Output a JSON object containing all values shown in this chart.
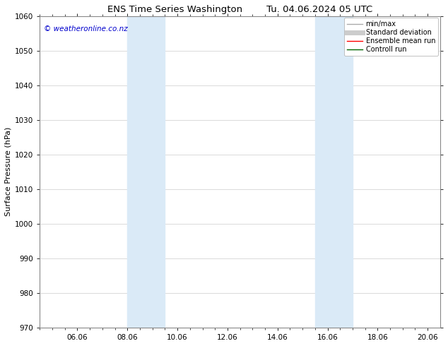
{
  "title_left": "ENS Time Series Washington",
  "title_right": "Tu. 04.06.2024 05 UTC",
  "ylabel": "Surface Pressure (hPa)",
  "ylim": [
    970,
    1060
  ],
  "yticks": [
    970,
    980,
    990,
    1000,
    1010,
    1020,
    1030,
    1040,
    1050,
    1060
  ],
  "xlim_start": 4.5,
  "xlim_end": 20.5,
  "xtick_labels": [
    "06.06",
    "08.06",
    "10.06",
    "12.06",
    "14.06",
    "16.06",
    "18.06",
    "20.06"
  ],
  "xtick_positions": [
    6.0,
    8.0,
    10.0,
    12.0,
    14.0,
    16.0,
    18.0,
    20.0
  ],
  "shaded_regions": [
    {
      "x_start": 8.0,
      "x_end": 9.5,
      "color": "#daeaf7"
    },
    {
      "x_start": 15.5,
      "x_end": 17.0,
      "color": "#daeaf7"
    }
  ],
  "watermark_text": "© weatheronline.co.nz",
  "watermark_color": "#0000cc",
  "background_color": "#ffffff",
  "grid_color": "#cccccc",
  "legend_items": [
    {
      "label": "min/max",
      "color": "#aaaaaa",
      "lw": 1.0
    },
    {
      "label": "Standard deviation",
      "color": "#cccccc",
      "lw": 5
    },
    {
      "label": "Ensemble mean run",
      "color": "#ff0000",
      "lw": 1.0
    },
    {
      "label": "Controll run",
      "color": "#006600",
      "lw": 1.0
    }
  ],
  "title_fontsize": 9.5,
  "axis_label_fontsize": 8,
  "tick_fontsize": 7.5,
  "legend_fontsize": 7,
  "watermark_fontsize": 7.5
}
